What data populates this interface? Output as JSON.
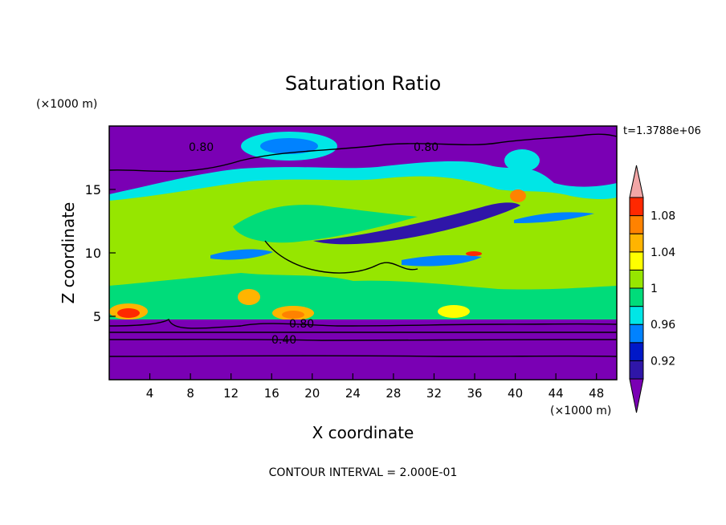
{
  "chart_data": {
    "type": "heatmap",
    "title": "Saturation Ratio",
    "xlabel": "X coordinate",
    "ylabel": "Z coordinate",
    "x_units": "(×1000 m)",
    "y_units": "(×1000 m)",
    "time_label": "t=1.3788e+06",
    "footer": "CONTOUR INTERVAL = 2.000E-01",
    "xlim": [
      0,
      50
    ],
    "ylim": [
      0,
      20
    ],
    "x_ticks": [
      4,
      8,
      12,
      16,
      20,
      24,
      28,
      32,
      36,
      40,
      44,
      48
    ],
    "y_ticks": [
      5,
      10,
      15
    ],
    "contour_labels": [
      "0.80",
      "0.80",
      "0.80",
      "0.40"
    ],
    "colorbar": {
      "levels": [
        {
          "color": "#7a00b4"
        },
        {
          "color": "#2f16a8",
          "label": "0.92"
        },
        {
          "color": "#0018c8"
        },
        {
          "color": "#0082ff",
          "label": "0.96"
        },
        {
          "color": "#00e6e6"
        },
        {
          "color": "#00dc7a",
          "label": "1"
        },
        {
          "color": "#96e600"
        },
        {
          "color": "#ffff00",
          "label": "1.04"
        },
        {
          "color": "#ffb400"
        },
        {
          "color": "#ff8200",
          "label": "1.08"
        },
        {
          "color": "#ff2800"
        },
        {
          "color": "#f2a6a6"
        }
      ]
    },
    "colors": {
      "dry": "#7a00b4",
      "moist": "#96e600",
      "saturated": "#00dc7a",
      "cyan": "#00e6e6",
      "blue": "#0082ff",
      "navy": "#2f16a8",
      "yellow": "#ffff00",
      "orange": "#ff8200",
      "red": "#ff2800"
    }
  }
}
